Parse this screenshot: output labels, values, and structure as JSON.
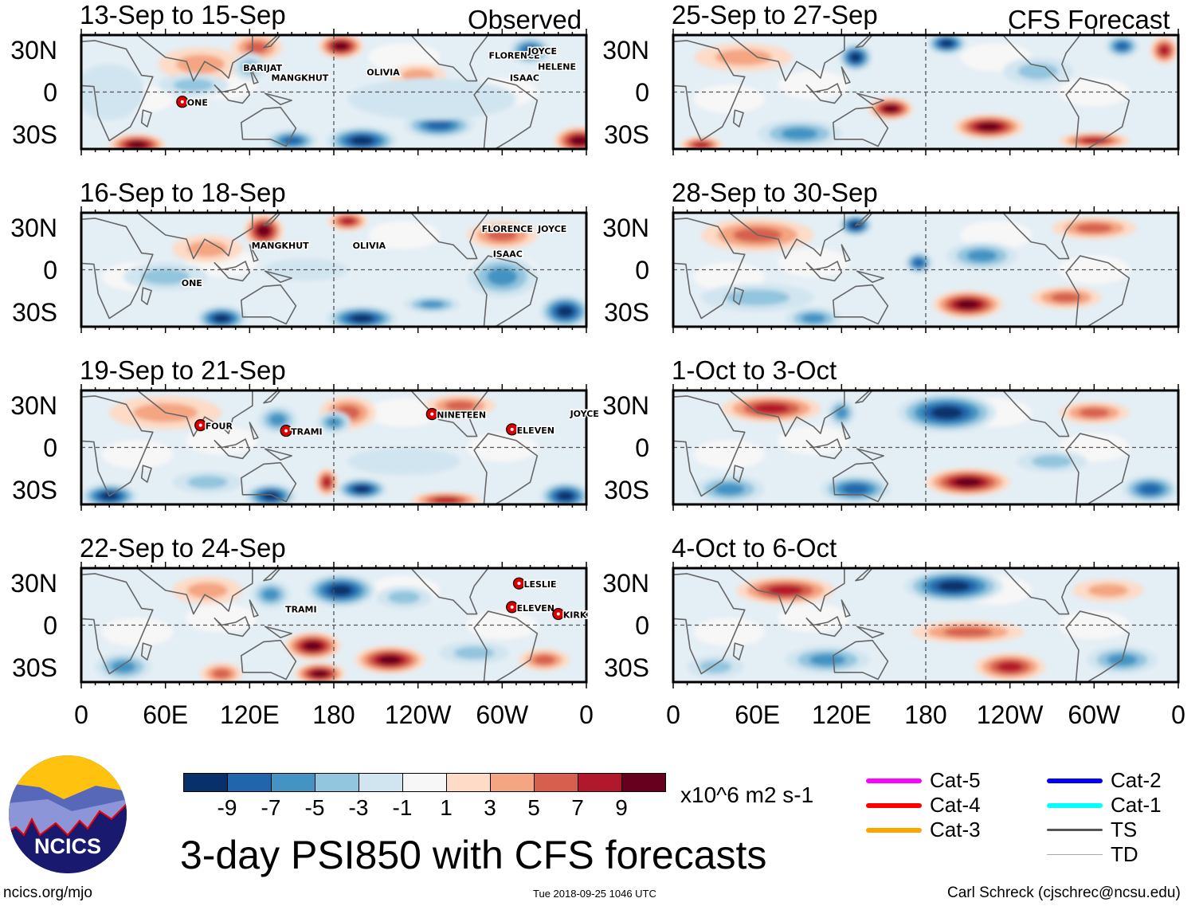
{
  "headers": {
    "observed": "Observed",
    "forecast": "CFS Forecast"
  },
  "lat_labels": [
    "30N",
    "0",
    "30S"
  ],
  "lon_labels": [
    "0",
    "60E",
    "120E",
    "180",
    "120W",
    "60W",
    "0"
  ],
  "colorbar": {
    "colors": [
      "#08306b",
      "#2166ac",
      "#4393c3",
      "#92c5de",
      "#d1e5f0",
      "#f7f7f7",
      "#fddbc7",
      "#f4a582",
      "#d6604d",
      "#b2182b",
      "#67001f"
    ],
    "labels": [
      "-9",
      "-7",
      "-5",
      "-3",
      "-1",
      "1",
      "3",
      "5",
      "7",
      "9"
    ],
    "units": "x10^6 m2 s-1"
  },
  "title": "3-day PSI850 with CFS forecasts",
  "footer": {
    "left": "ncics.org/mjo",
    "center": "Tue 2018-09-25 1046 UTC",
    "right": "Carl Schreck (cjschrec@ncsu.edu)"
  },
  "logo_text": "NCICS",
  "legend": [
    {
      "label": "Cat-5",
      "color": "#ff00ff"
    },
    {
      "label": "Cat-4",
      "color": "#ff0000"
    },
    {
      "label": "Cat-3",
      "color": "#ffa500"
    },
    {
      "label": "Cat-2",
      "color": "#0000ff"
    },
    {
      "label": "Cat-1",
      "color": "#00ffff"
    },
    {
      "label": "TS",
      "color": "#555555"
    },
    {
      "label": "TD",
      "color": "#aaaaaa"
    }
  ],
  "panels": [
    {
      "title": "13-Sep to 15-Sep",
      "storms": [
        {
          "name": "BARIJAT",
          "lon": 112,
          "lat": 18
        },
        {
          "name": "MANGKHUT",
          "lon": 132,
          "lat": 11
        },
        {
          "name": "OLIVIA",
          "lon": 200,
          "lat": 15
        },
        {
          "name": "FLORENCE",
          "lon": 287,
          "lat": 27
        },
        {
          "name": "JOYCE",
          "lon": 315,
          "lat": 30
        },
        {
          "name": "HELENE",
          "lon": 322,
          "lat": 19
        },
        {
          "name": "ISAAC",
          "lon": 302,
          "lat": 11
        },
        {
          "name": "ONE",
          "lon": 72,
          "lat": -7,
          "marker": true
        }
      ],
      "blobs": [
        {
          "lon": 85,
          "lat": 20,
          "rx": 30,
          "ry": 12,
          "v": 3
        },
        {
          "lon": 125,
          "lat": 32,
          "rx": 18,
          "ry": 10,
          "v": 5
        },
        {
          "lon": 185,
          "lat": 33,
          "rx": 16,
          "ry": 9,
          "v": 9
        },
        {
          "lon": 320,
          "lat": 30,
          "rx": 15,
          "ry": 10,
          "v": -7
        },
        {
          "lon": 120,
          "lat": 18,
          "rx": 12,
          "ry": 10,
          "v": -3
        },
        {
          "lon": 80,
          "lat": 5,
          "rx": 25,
          "ry": 8,
          "v": -3
        },
        {
          "lon": 200,
          "lat": -35,
          "rx": 25,
          "ry": 10,
          "v": -9
        },
        {
          "lon": 255,
          "lat": -24,
          "rx": 25,
          "ry": 9,
          "v": -7
        },
        {
          "lon": 150,
          "lat": -35,
          "rx": 18,
          "ry": 8,
          "v": -7
        },
        {
          "lon": 355,
          "lat": -35,
          "rx": 18,
          "ry": 10,
          "v": 9
        },
        {
          "lon": 40,
          "lat": -38,
          "rx": 20,
          "ry": 8,
          "v": 9
        },
        {
          "lon": 240,
          "lat": 12,
          "rx": 20,
          "ry": 8,
          "v": 3
        },
        {
          "lon": 20,
          "lat": 0,
          "rx": 25,
          "ry": 20,
          "v": -1
        },
        {
          "lon": 250,
          "lat": -5,
          "rx": 60,
          "ry": 15,
          "v": -1
        }
      ]
    },
    {
      "title": "16-Sep to 18-Sep",
      "storms": [
        {
          "name": "MANGKHUT",
          "lon": 118,
          "lat": 18
        },
        {
          "name": "OLIVIA",
          "lon": 190,
          "lat": 18
        },
        {
          "name": "FLORENCE",
          "lon": 282,
          "lat": 30
        },
        {
          "name": "JOYCE",
          "lon": 322,
          "lat": 30
        },
        {
          "name": "ISAAC",
          "lon": 290,
          "lat": 12
        },
        {
          "name": "ONE",
          "lon": 68,
          "lat": -9
        }
      ],
      "blobs": [
        {
          "lon": 130,
          "lat": 28,
          "rx": 14,
          "ry": 12,
          "v": 9
        },
        {
          "lon": 190,
          "lat": 35,
          "rx": 14,
          "ry": 7,
          "v": 7
        },
        {
          "lon": 300,
          "lat": 25,
          "rx": 25,
          "ry": 10,
          "v": 5
        },
        {
          "lon": 90,
          "lat": 15,
          "rx": 25,
          "ry": 10,
          "v": 3
        },
        {
          "lon": 100,
          "lat": -35,
          "rx": 18,
          "ry": 9,
          "v": -9
        },
        {
          "lon": 200,
          "lat": -35,
          "rx": 25,
          "ry": 9,
          "v": -9
        },
        {
          "lon": 345,
          "lat": -30,
          "rx": 18,
          "ry": 12,
          "v": -9
        },
        {
          "lon": 300,
          "lat": -5,
          "rx": 25,
          "ry": 15,
          "v": -5
        },
        {
          "lon": 250,
          "lat": -25,
          "rx": 20,
          "ry": 6,
          "v": -5
        },
        {
          "lon": 60,
          "lat": -5,
          "rx": 30,
          "ry": 10,
          "v": -3
        },
        {
          "lon": 160,
          "lat": 0,
          "rx": 30,
          "ry": 8,
          "v": -1
        }
      ]
    },
    {
      "title": "19-Sep to 21-Sep",
      "storms": [
        {
          "name": "FOUR",
          "lon": 85,
          "lat": 16,
          "marker": true
        },
        {
          "name": "TRAMI",
          "lon": 146,
          "lat": 12,
          "marker": true
        },
        {
          "name": "NINETEEN",
          "lon": 250,
          "lat": 24,
          "marker": true
        },
        {
          "name": "ELEVEN",
          "lon": 307,
          "lat": 13,
          "marker": true
        },
        {
          "name": "JOYCE",
          "lon": 345,
          "lat": 25
        }
      ],
      "blobs": [
        {
          "lon": 190,
          "lat": 25,
          "rx": 20,
          "ry": 12,
          "v": 5
        },
        {
          "lon": 140,
          "lat": 20,
          "rx": 14,
          "ry": 10,
          "v": -5
        },
        {
          "lon": 180,
          "lat": 18,
          "rx": 12,
          "ry": 8,
          "v": -5
        },
        {
          "lon": 60,
          "lat": 25,
          "rx": 40,
          "ry": 12,
          "v": 3
        },
        {
          "lon": 270,
          "lat": 30,
          "rx": 25,
          "ry": 8,
          "v": 5
        },
        {
          "lon": 20,
          "lat": -35,
          "rx": 20,
          "ry": 9,
          "v": -9
        },
        {
          "lon": 135,
          "lat": -35,
          "rx": 18,
          "ry": 9,
          "v": -9
        },
        {
          "lon": 200,
          "lat": -30,
          "rx": 18,
          "ry": 8,
          "v": -9
        },
        {
          "lon": 345,
          "lat": -35,
          "rx": 18,
          "ry": 10,
          "v": -9
        },
        {
          "lon": 175,
          "lat": -25,
          "rx": 8,
          "ry": 10,
          "v": 7
        },
        {
          "lon": 260,
          "lat": -38,
          "rx": 25,
          "ry": 6,
          "v": 7
        },
        {
          "lon": 90,
          "lat": -25,
          "rx": 25,
          "ry": 8,
          "v": -3
        },
        {
          "lon": 230,
          "lat": -10,
          "rx": 40,
          "ry": 10,
          "v": -1
        }
      ]
    },
    {
      "title": "22-Sep to 24-Sep",
      "storms": [
        {
          "name": "TRAMI",
          "lon": 142,
          "lat": 12
        },
        {
          "name": "LESLIE",
          "lon": 312,
          "lat": 30,
          "marker": true
        },
        {
          "name": "ELEVEN",
          "lon": 307,
          "lat": 13,
          "marker": true
        },
        {
          "name": "KIRK",
          "lon": 340,
          "lat": 8,
          "marker": true
        }
      ],
      "blobs": [
        {
          "lon": 185,
          "lat": 25,
          "rx": 25,
          "ry": 12,
          "v": -9
        },
        {
          "lon": 135,
          "lat": 22,
          "rx": 14,
          "ry": 10,
          "v": -5
        },
        {
          "lon": 230,
          "lat": 20,
          "rx": 20,
          "ry": 8,
          "v": -3
        },
        {
          "lon": 165,
          "lat": -15,
          "rx": 20,
          "ry": 10,
          "v": 9
        },
        {
          "lon": 220,
          "lat": -25,
          "rx": 25,
          "ry": 10,
          "v": 9
        },
        {
          "lon": 170,
          "lat": -35,
          "rx": 18,
          "ry": 8,
          "v": 9
        },
        {
          "lon": 90,
          "lat": 25,
          "rx": 25,
          "ry": 10,
          "v": 3
        },
        {
          "lon": 30,
          "lat": -30,
          "rx": 20,
          "ry": 10,
          "v": -5
        },
        {
          "lon": 100,
          "lat": -35,
          "rx": 15,
          "ry": 8,
          "v": 5
        },
        {
          "lon": 330,
          "lat": -25,
          "rx": 18,
          "ry": 8,
          "v": 5
        },
        {
          "lon": 280,
          "lat": -20,
          "rx": 25,
          "ry": 8,
          "v": -3
        }
      ]
    },
    {
      "title": "25-Sep to 27-Sep",
      "storms": [],
      "blobs": [
        {
          "lon": 130,
          "lat": 25,
          "rx": 12,
          "ry": 10,
          "v": -9
        },
        {
          "lon": 195,
          "lat": 35,
          "rx": 14,
          "ry": 8,
          "v": -9
        },
        {
          "lon": 320,
          "lat": 33,
          "rx": 12,
          "ry": 8,
          "v": -7
        },
        {
          "lon": 155,
          "lat": -12,
          "rx": 16,
          "ry": 8,
          "v": 9
        },
        {
          "lon": 225,
          "lat": -25,
          "rx": 25,
          "ry": 9,
          "v": 9
        },
        {
          "lon": 300,
          "lat": -35,
          "rx": 25,
          "ry": 6,
          "v": 7
        },
        {
          "lon": 50,
          "lat": 25,
          "rx": 35,
          "ry": 10,
          "v": 3
        },
        {
          "lon": 90,
          "lat": -30,
          "rx": 30,
          "ry": 10,
          "v": -5
        },
        {
          "lon": 20,
          "lat": -38,
          "rx": 15,
          "ry": 6,
          "v": 7
        },
        {
          "lon": 260,
          "lat": 15,
          "rx": 25,
          "ry": 10,
          "v": -3
        },
        {
          "lon": 350,
          "lat": 30,
          "rx": 10,
          "ry": 10,
          "v": 7
        }
      ]
    },
    {
      "title": "28-Sep to 30-Sep",
      "storms": [],
      "blobs": [
        {
          "lon": 130,
          "lat": 32,
          "rx": 12,
          "ry": 8,
          "v": -9
        },
        {
          "lon": 175,
          "lat": 5,
          "rx": 10,
          "ry": 8,
          "v": -7
        },
        {
          "lon": 220,
          "lat": 10,
          "rx": 25,
          "ry": 10,
          "v": -5
        },
        {
          "lon": 210,
          "lat": -25,
          "rx": 25,
          "ry": 10,
          "v": 9
        },
        {
          "lon": 280,
          "lat": -20,
          "rx": 25,
          "ry": 8,
          "v": 5
        },
        {
          "lon": 60,
          "lat": 25,
          "rx": 40,
          "ry": 12,
          "v": 5
        },
        {
          "lon": 300,
          "lat": 30,
          "rx": 30,
          "ry": 8,
          "v": 5
        },
        {
          "lon": 60,
          "lat": -20,
          "rx": 40,
          "ry": 10,
          "v": -3
        },
        {
          "lon": 100,
          "lat": -35,
          "rx": 20,
          "ry": 8,
          "v": -5
        }
      ]
    },
    {
      "title": "1-Oct to 3-Oct",
      "storms": [],
      "blobs": [
        {
          "lon": 195,
          "lat": 25,
          "rx": 35,
          "ry": 14,
          "v": -9
        },
        {
          "lon": 120,
          "lat": 25,
          "rx": 10,
          "ry": 10,
          "v": -5
        },
        {
          "lon": 70,
          "lat": 28,
          "rx": 35,
          "ry": 10,
          "v": 7
        },
        {
          "lon": 210,
          "lat": -25,
          "rx": 30,
          "ry": 10,
          "v": 9
        },
        {
          "lon": 340,
          "lat": -30,
          "rx": 20,
          "ry": 10,
          "v": -7
        },
        {
          "lon": 130,
          "lat": -30,
          "rx": 25,
          "ry": 10,
          "v": -7
        },
        {
          "lon": 40,
          "lat": -30,
          "rx": 25,
          "ry": 10,
          "v": -5
        },
        {
          "lon": 300,
          "lat": 25,
          "rx": 25,
          "ry": 8,
          "v": 5
        },
        {
          "lon": 270,
          "lat": -10,
          "rx": 25,
          "ry": 8,
          "v": -3
        }
      ]
    },
    {
      "title": "4-Oct to 6-Oct",
      "storms": [],
      "blobs": [
        {
          "lon": 200,
          "lat": 28,
          "rx": 35,
          "ry": 12,
          "v": -9
        },
        {
          "lon": 80,
          "lat": 25,
          "rx": 35,
          "ry": 10,
          "v": 7
        },
        {
          "lon": 210,
          "lat": -5,
          "rx": 40,
          "ry": 8,
          "v": 5
        },
        {
          "lon": 240,
          "lat": -30,
          "rx": 25,
          "ry": 10,
          "v": 7
        },
        {
          "lon": 110,
          "lat": -25,
          "rx": 30,
          "ry": 10,
          "v": -5
        },
        {
          "lon": 320,
          "lat": -25,
          "rx": 25,
          "ry": 10,
          "v": -5
        },
        {
          "lon": 30,
          "lat": -30,
          "rx": 20,
          "ry": 8,
          "v": -3
        },
        {
          "lon": 310,
          "lat": 25,
          "rx": 25,
          "ry": 8,
          "v": 3
        }
      ]
    }
  ]
}
